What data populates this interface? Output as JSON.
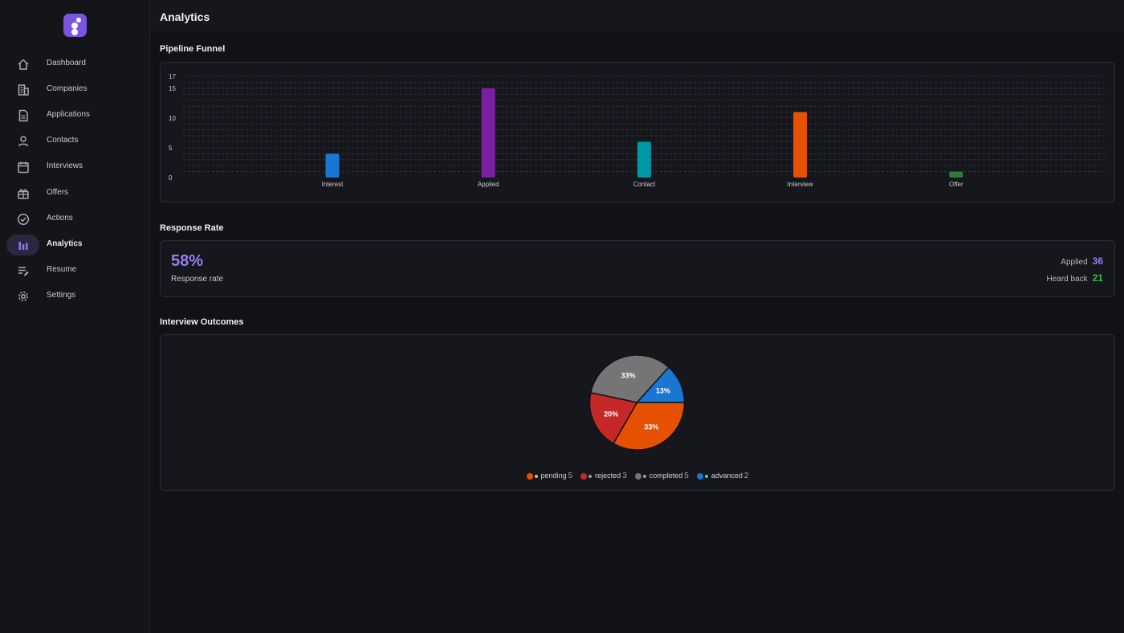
{
  "sidebar": {
    "items": [
      {
        "label": "Dashboard",
        "icon": "home-icon"
      },
      {
        "label": "Companies",
        "icon": "building-icon"
      },
      {
        "label": "Applications",
        "icon": "document-icon"
      },
      {
        "label": "Contacts",
        "icon": "person-icon"
      },
      {
        "label": "Interviews",
        "icon": "calendar-icon"
      },
      {
        "label": "Offers",
        "icon": "gift-icon"
      },
      {
        "label": "Actions",
        "icon": "check-circle-icon"
      },
      {
        "label": "Analytics",
        "icon": "bar-chart-icon",
        "active": true
      },
      {
        "label": "Resume",
        "icon": "edit-list-icon"
      },
      {
        "label": "Settings",
        "icon": "gear-icon"
      }
    ]
  },
  "header": {
    "title": "Analytics"
  },
  "sections": {
    "funnel_title": "Pipeline Funnel",
    "response_title": "Response Rate",
    "outcomes_title": "Interview Outcomes"
  },
  "response": {
    "rate": "58%",
    "rate_label": "Response rate",
    "applied_label": "Applied",
    "applied_value": "36",
    "heard_back_label": "Heard back",
    "heard_back_value": "21"
  },
  "colors": {
    "accent": "#9b7cf0",
    "heard_back": "#3fb950"
  },
  "chart_data": [
    {
      "type": "bar",
      "categories": [
        "Interest",
        "Applied",
        "Contact",
        "Interview",
        "Offer"
      ],
      "values": [
        4,
        15,
        6,
        11,
        1
      ],
      "colors": [
        "#1976d2",
        "#7b1fa2",
        "#0097a7",
        "#e65100",
        "#2e7d32"
      ],
      "yticks": [
        "17",
        "15",
        "10",
        "5",
        "0"
      ],
      "ylim": [
        0,
        17
      ],
      "grid": true
    },
    {
      "type": "pie",
      "categories": [
        "pending",
        "rejected",
        "completed",
        "advanced"
      ],
      "values": [
        5,
        3,
        5,
        2
      ],
      "labels": [
        "33%",
        "20%",
        "33%",
        "13%"
      ],
      "colors": [
        "#e65100",
        "#c62828",
        "#757575",
        "#1976d2"
      ],
      "dot_colors": [
        "#ffb74d",
        "#9e9e9e",
        "#9e9e9e",
        "#4dd0e1"
      ]
    }
  ]
}
